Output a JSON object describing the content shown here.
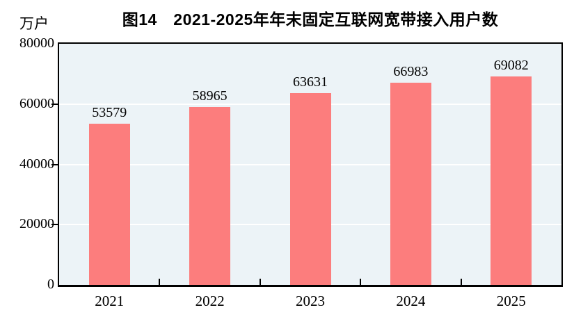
{
  "chart_data": {
    "type": "bar",
    "title": "图14　2021-2025年年末固定互联网宽带接入用户数",
    "ylabel": "万户",
    "xlabel": "",
    "categories": [
      "2021",
      "2022",
      "2023",
      "2024",
      "2025"
    ],
    "values": [
      53579,
      58965,
      63631,
      66983,
      69082
    ],
    "data_labels": [
      "53579",
      "58965",
      "63631",
      "66983",
      "69082"
    ],
    "ylim": [
      0,
      80000
    ],
    "yticks": [
      0,
      20000,
      40000,
      60000,
      80000
    ],
    "ytick_labels": [
      "0",
      "20000",
      "40000",
      "60000",
      "80000"
    ],
    "grid": true,
    "legend_position": "none",
    "colors": {
      "bar": "#FC7D7D",
      "plot_background": "#ECF3F7",
      "gridline": "#FFFFFF",
      "axis": "#000000",
      "text": "#000000"
    }
  }
}
